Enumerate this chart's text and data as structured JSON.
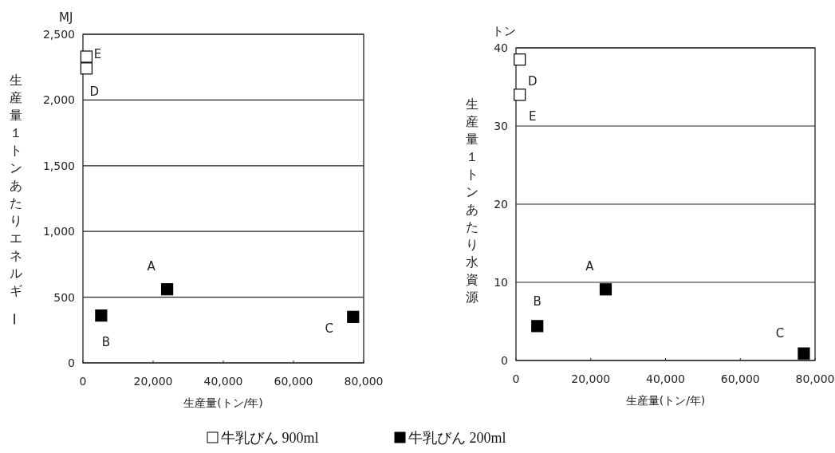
{
  "chart_data": [
    {
      "type": "scatter",
      "xlabel": "生産量(トン/年)",
      "ylabel": "生産量１トンあたりエネルギー",
      "marker": "square",
      "grid": "y",
      "legend": "bottom",
      "xlim": [
        0,
        80000
      ],
      "ylim": [
        0,
        2500
      ],
      "xticks": [
        0,
        {
          "value": 20000,
          "label": "20,000"
        },
        {
          "value": 40000,
          "label": "40,000"
        },
        {
          "value": 60000,
          "label": "60,000"
        },
        {
          "value": 80000,
          "label": "80,000"
        }
      ],
      "yticks": [
        0,
        500,
        {
          "value": 1000,
          "label": "1,000"
        },
        {
          "value": 1500,
          "label": "1,500"
        },
        {
          "value": 2000,
          "label": "2,000"
        },
        {
          "value": 2500,
          "label": "2,500"
        }
      ],
      "series": [
        {
          "name": "牛乳びん 900ml",
          "color": "#ffffff",
          "x": [
            1000,
            1000
          ],
          "values": [
            2330,
            2240
          ],
          "value_labels": [
            "E",
            "D"
          ]
        },
        {
          "name": "牛乳びん 200ml",
          "color": "#000000",
          "x": [
            24000,
            5200,
            77000
          ],
          "values": [
            560,
            360,
            350
          ],
          "value_labels": [
            "A",
            "B",
            "C"
          ]
        }
      ],
      "annotations": [
        "MJ"
      ]
    },
    {
      "type": "scatter",
      "xlabel": "生産量(トン/年)",
      "ylabel": "生産量１トンあたり水資源",
      "marker": "square",
      "grid": "y",
      "xlim": [
        0,
        80000
      ],
      "ylim": [
        0,
        40
      ],
      "xticks": [
        0,
        {
          "value": 20000,
          "label": "20,000"
        },
        {
          "value": 40000,
          "label": "40,000"
        },
        {
          "value": 60000,
          "label": "60,000"
        },
        {
          "value": 80000,
          "label": "80,000"
        }
      ],
      "yticks": [
        0,
        10,
        20,
        30,
        40
      ],
      "series": [
        {
          "color": "#ffffff",
          "x": [
            1000,
            1000
          ],
          "values": [
            38.5,
            34.0
          ],
          "value_labels": [
            "D",
            "E"
          ]
        },
        {
          "color": "#000000",
          "x": [
            24000,
            5700,
            77000
          ],
          "values": [
            9.1,
            4.4,
            0.9
          ],
          "value_labels": [
            "A",
            "B",
            "C"
          ]
        }
      ],
      "annotations": [
        "トン"
      ]
    }
  ]
}
